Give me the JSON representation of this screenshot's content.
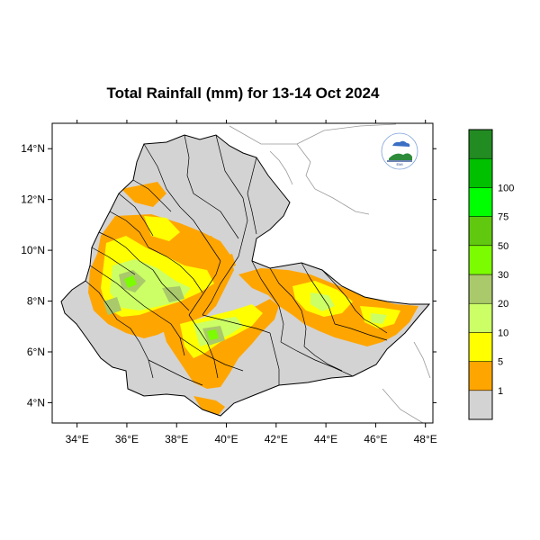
{
  "title": "Total Rainfall (mm) for 13-14 Oct 2024",
  "map": {
    "region": "Ethiopia",
    "lon_range": [
      33,
      48.3
    ],
    "lat_range": [
      3.2,
      15
    ],
    "x_ticks": [
      "34°E",
      "36°E",
      "38°E",
      "40°E",
      "42°E",
      "44°E",
      "46°E",
      "48°E"
    ],
    "y_ticks": [
      "14°N",
      "12°N",
      "10°N",
      "8°N",
      "6°N",
      "4°N"
    ],
    "colors": {
      "land_base": "#d3d3d3",
      "border": "#000000",
      "neighbor_border": "#888888"
    }
  },
  "legend": {
    "labels": [
      "1",
      "5",
      "10",
      "20",
      "30",
      "50",
      "75",
      "100"
    ],
    "colors": [
      "#d3d3d3",
      "#ffa500",
      "#ffff00",
      "#ccff66",
      "#a9c96a",
      "#7cfc00",
      "#5fc80f",
      "#00ff00",
      "#00c000",
      "#228b22"
    ]
  },
  "logo": {
    "caption": "EMI"
  }
}
